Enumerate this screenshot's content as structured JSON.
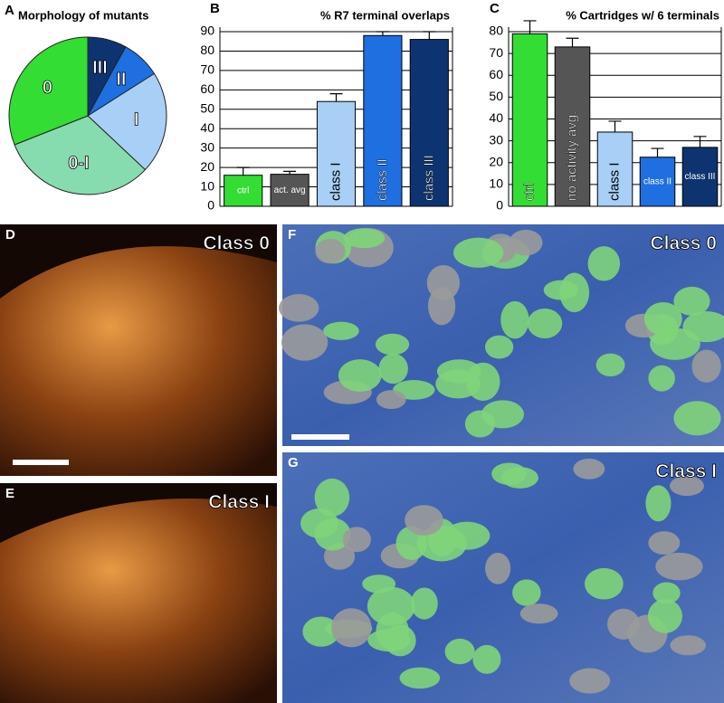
{
  "chart_data": [
    {
      "type": "pie",
      "panel": "A",
      "title": "Morphology of mutants",
      "categories": [
        "III",
        "II",
        "I",
        "0-I",
        "0"
      ],
      "values": [
        8,
        8,
        21,
        32,
        31
      ],
      "colors": [
        "#0d3470",
        "#1e6fe0",
        "#a8cff5",
        "#86dcae",
        "#33dd33"
      ]
    },
    {
      "type": "bar",
      "panel": "B",
      "title": "% R7 terminal overlaps",
      "categories": [
        "ctrl",
        "act. avg",
        "class I",
        "class II",
        "class III"
      ],
      "values": [
        16,
        16.5,
        54,
        88,
        86
      ],
      "errors": [
        4,
        1.5,
        4,
        2,
        4
      ],
      "colors": [
        "#33dd33",
        "#555555",
        "#a8cff5",
        "#1e6fe0",
        "#0d3470"
      ],
      "ylim": [
        0,
        90
      ],
      "yticks": [
        0,
        10,
        20,
        30,
        40,
        50,
        60,
        70,
        80,
        90
      ],
      "grid": true
    },
    {
      "type": "bar",
      "panel": "C",
      "title": "% Cartridges w/ 6 terminals",
      "categories": [
        "ctrl",
        "no activity avg.",
        "class I",
        "class II",
        "class III"
      ],
      "values": [
        79,
        73,
        34,
        22.5,
        27
      ],
      "errors": [
        6,
        4,
        5,
        4,
        5
      ],
      "colors": [
        "#33dd33",
        "#555555",
        "#a8cff5",
        "#1e6fe0",
        "#0d3470"
      ],
      "ylim": [
        0,
        80
      ],
      "yticks": [
        0,
        10,
        20,
        30,
        40,
        50,
        60,
        70,
        80
      ],
      "grid": true
    }
  ],
  "images": [
    {
      "panel": "D",
      "label": "Class 0"
    },
    {
      "panel": "E",
      "label": "Class I"
    },
    {
      "panel": "F",
      "label": "Class 0"
    },
    {
      "panel": "G",
      "label": "Class I"
    }
  ]
}
